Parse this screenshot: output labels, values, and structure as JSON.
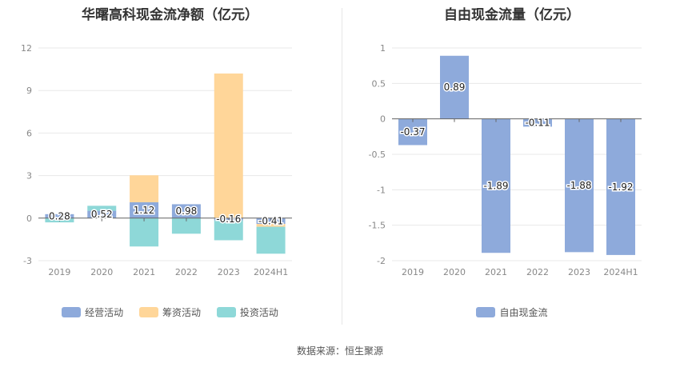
{
  "colors": {
    "operating": "#8eaadb",
    "financing": "#ffd699",
    "investing": "#8ed8d8",
    "free_cash_flow": "#8eaadb"
  },
  "chart_data": [
    {
      "type": "bar",
      "stacked": true,
      "title": "华曙高科现金流净额（亿元）",
      "categories": [
        "2019",
        "2020",
        "2021",
        "2022",
        "2023",
        "2024H1"
      ],
      "series": [
        {
          "name": "经营活动",
          "values": [
            0.28,
            0.52,
            1.12,
            0.98,
            -0.16,
            -0.41
          ],
          "labels": [
            "0.28",
            "0.52",
            "1.12",
            "0.98",
            "-0.16",
            "-0.41"
          ]
        },
        {
          "name": "筹资活动",
          "values": [
            0.0,
            0.0,
            1.9,
            0.0,
            10.2,
            -0.2
          ]
        },
        {
          "name": "投资活动",
          "values": [
            -0.3,
            0.35,
            -2.0,
            -1.1,
            -1.4,
            -1.9
          ]
        }
      ],
      "ylim": [
        -3,
        12
      ],
      "yticks": [
        "12",
        "9",
        "6",
        "3",
        "0",
        "-3"
      ],
      "grid": true,
      "legend_position": "bottom"
    },
    {
      "type": "bar",
      "title": "自由现金流量（亿元）",
      "categories": [
        "2019",
        "2020",
        "2021",
        "2022",
        "2023",
        "2024H1"
      ],
      "series": [
        {
          "name": "自由现金流",
          "values": [
            -0.37,
            0.89,
            -1.89,
            -0.11,
            -1.88,
            -1.92
          ],
          "labels": [
            "-0.37",
            "0.89",
            "-1.89",
            "-0.11",
            "-1.88",
            "-1.92"
          ]
        }
      ],
      "ylim": [
        -2,
        1
      ],
      "yticks": [
        "1",
        "0.5",
        "0",
        "-0.5",
        "-1",
        "-1.5",
        "-2"
      ],
      "grid": true,
      "legend_position": "bottom"
    }
  ],
  "footer": {
    "source": "数据来源：恒生聚源"
  }
}
